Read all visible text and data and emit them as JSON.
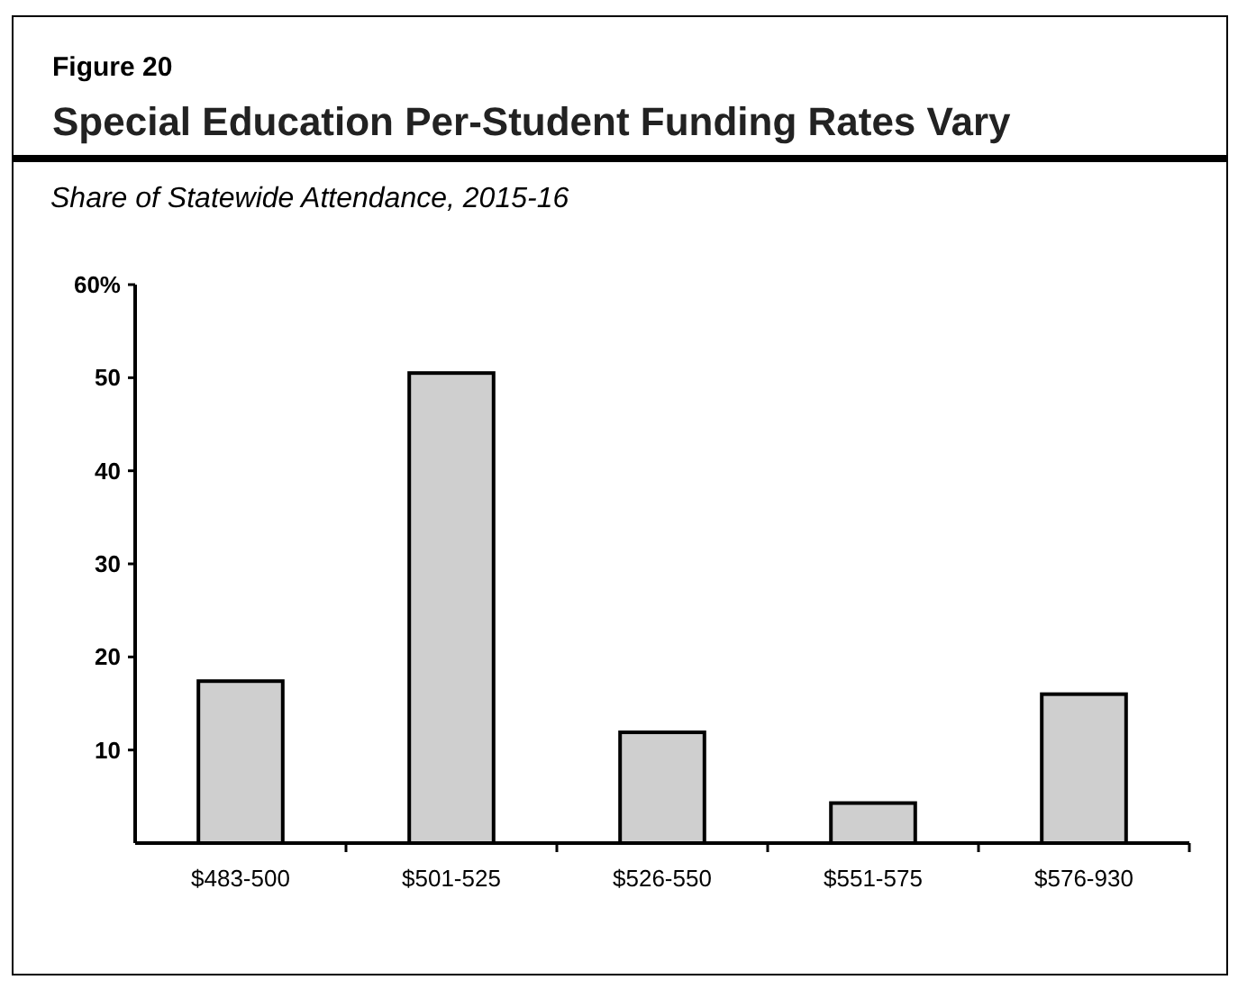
{
  "chart_data": {
    "type": "bar",
    "title": "Special Education Per-Student Funding Rates Vary",
    "subtitle": "Share of Statewide Attendance, 2015-16",
    "annotations": [
      "Figure 20"
    ],
    "categories": [
      "$483-500",
      "$501-525",
      "$526-550",
      "$551-575",
      "$576-930"
    ],
    "values": [
      17.4,
      50.5,
      11.9,
      4.3,
      16.0
    ],
    "color": "#cfcfcf",
    "ylim": [
      0,
      60
    ],
    "yticks": [
      10,
      20,
      30,
      40,
      50,
      {
        "value": 60,
        "label": "60%"
      }
    ],
    "grid": false
  }
}
